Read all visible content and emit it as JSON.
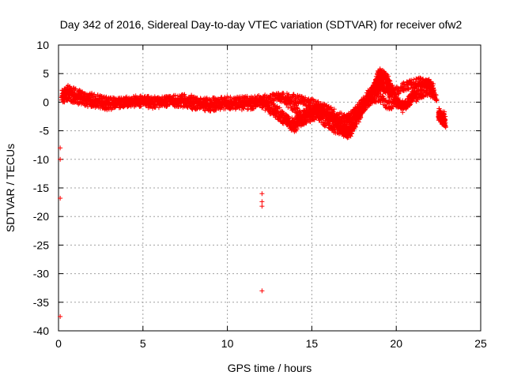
{
  "chart_data": {
    "type": "scatter",
    "title": "Day 342 of 2016, Sidereal Day-to-day VTEC variation (SDTVAR) for receiver ofw2",
    "xlabel": "GPS time / hours",
    "ylabel": "SDTVAR / TECUs",
    "xlim": [
      0,
      25
    ],
    "ylim": [
      -40,
      10
    ],
    "x_ticks": [
      "0",
      "5",
      "10",
      "15",
      "20",
      "25"
    ],
    "x_tick_values": [
      0,
      5,
      10,
      15,
      20,
      25
    ],
    "y_ticks": [
      "10",
      "5",
      "0",
      "-5",
      "-10",
      "-15",
      "-20",
      "-25",
      "-30",
      "-35",
      "-40"
    ],
    "y_tick_values": [
      10,
      5,
      0,
      -5,
      -10,
      -15,
      -20,
      -25,
      -30,
      -35,
      -40
    ],
    "grid": true,
    "marker": "+",
    "color": "#ff0000",
    "series": [
      {
        "name": "SDTVAR",
        "curves": [
          [
            [
              0.2,
              1.2
            ],
            [
              0.5,
              2.2
            ],
            [
              0.8,
              1.8
            ],
            [
              1.2,
              1.5
            ],
            [
              1.6,
              1.1
            ],
            [
              2.0,
              0.8
            ],
            [
              2.5,
              0.4
            ],
            [
              3.0,
              0.1
            ],
            [
              3.5,
              0.0
            ],
            [
              4.0,
              0.2
            ],
            [
              4.5,
              0.3
            ],
            [
              5.0,
              0.4
            ],
            [
              5.5,
              0.2
            ],
            [
              6.0,
              0.1
            ],
            [
              6.5,
              0.3
            ],
            [
              7.0,
              0.5
            ],
            [
              7.5,
              0.6
            ],
            [
              8.0,
              0.4
            ],
            [
              8.5,
              0.1
            ],
            [
              9.0,
              0.0
            ],
            [
              9.5,
              0.1
            ],
            [
              10.0,
              0.2
            ],
            [
              10.5,
              0.3
            ],
            [
              11.0,
              0.3
            ],
            [
              11.5,
              0.2
            ],
            [
              12.0,
              0.4
            ],
            [
              12.5,
              0.6
            ],
            [
              13.0,
              0.9
            ],
            [
              13.5,
              0.8
            ],
            [
              14.0,
              0.6
            ],
            [
              14.5,
              0.3
            ],
            [
              15.0,
              -0.2
            ],
            [
              15.5,
              -0.8
            ],
            [
              16.0,
              -1.5
            ],
            [
              16.5,
              -2.3
            ],
            [
              17.0,
              -3.0
            ],
            [
              17.3,
              -2.5
            ],
            [
              17.6,
              -1.5
            ],
            [
              18.0,
              0.0
            ],
            [
              18.4,
              1.5
            ],
            [
              18.8,
              3.0
            ],
            [
              19.0,
              3.5
            ],
            [
              19.3,
              2.5
            ],
            [
              19.6,
              1.5
            ],
            [
              20.0,
              2.0
            ],
            [
              20.5,
              2.8
            ],
            [
              21.0,
              3.2
            ],
            [
              21.5,
              3.6
            ],
            [
              22.0,
              3.0
            ],
            [
              22.3,
              1.0
            ]
          ],
          [
            [
              0.2,
              0.5
            ],
            [
              0.5,
              1.0
            ],
            [
              1.0,
              0.6
            ],
            [
              1.5,
              0.2
            ],
            [
              2.0,
              -0.2
            ],
            [
              2.5,
              -0.5
            ],
            [
              3.0,
              -0.6
            ],
            [
              3.5,
              -0.3
            ],
            [
              4.0,
              -0.2
            ],
            [
              4.5,
              0.0
            ],
            [
              5.0,
              -0.1
            ],
            [
              5.5,
              -0.3
            ],
            [
              6.0,
              -0.2
            ],
            [
              6.5,
              -0.1
            ],
            [
              7.0,
              0.0
            ],
            [
              7.5,
              -0.2
            ],
            [
              8.0,
              -0.5
            ],
            [
              8.5,
              -0.7
            ],
            [
              9.0,
              -0.8
            ],
            [
              9.5,
              -0.6
            ],
            [
              10.0,
              -0.4
            ],
            [
              10.5,
              -0.5
            ],
            [
              11.0,
              -0.6
            ],
            [
              11.5,
              -0.4
            ],
            [
              12.0,
              -0.2
            ],
            [
              12.5,
              -0.5
            ],
            [
              13.0,
              -1.5
            ],
            [
              13.5,
              -2.8
            ],
            [
              13.9,
              -4.8
            ],
            [
              14.3,
              -3.5
            ],
            [
              14.8,
              -2.0
            ],
            [
              15.3,
              -1.0
            ],
            [
              15.8,
              -1.5
            ],
            [
              16.3,
              -2.8
            ],
            [
              16.8,
              -4.8
            ],
            [
              17.1,
              -5.6
            ],
            [
              17.4,
              -4.5
            ],
            [
              17.8,
              -2.0
            ],
            [
              18.2,
              -0.5
            ],
            [
              18.6,
              0.5
            ],
            [
              19.0,
              1.0
            ],
            [
              19.5,
              -0.5
            ],
            [
              20.0,
              -0.2
            ],
            [
              20.5,
              -0.5
            ],
            [
              21.0,
              0.5
            ],
            [
              21.5,
              1.5
            ],
            [
              22.0,
              2.0
            ],
            [
              22.4,
              0.5
            ]
          ],
          [
            [
              12.2,
              -0.5
            ],
            [
              12.8,
              -2.0
            ],
            [
              13.3,
              -3.0
            ],
            [
              13.8,
              -3.5
            ],
            [
              14.3,
              -2.5
            ],
            [
              14.8,
              -1.5
            ],
            [
              15.3,
              -2.0
            ],
            [
              15.8,
              -3.5
            ],
            [
              16.3,
              -4.5
            ],
            [
              16.8,
              -5.0
            ],
            [
              17.2,
              -5.8
            ],
            [
              17.6,
              -3.5
            ],
            [
              18.0,
              -1.5
            ],
            [
              18.5,
              0.5
            ],
            [
              19.0,
              2.5
            ],
            [
              19.3,
              4.0
            ],
            [
              19.6,
              3.0
            ],
            [
              20.0,
              0.5
            ],
            [
              20.4,
              -1.0
            ],
            [
              20.8,
              0.5
            ],
            [
              21.3,
              2.5
            ],
            [
              21.8,
              3.5
            ],
            [
              22.2,
              2.5
            ]
          ],
          [
            [
              13.0,
              1.0
            ],
            [
              13.5,
              0.0
            ],
            [
              14.0,
              -1.0
            ],
            [
              14.5,
              -3.2
            ],
            [
              15.0,
              -2.5
            ],
            [
              15.5,
              -1.8
            ],
            [
              16.0,
              -2.5
            ],
            [
              16.5,
              -3.5
            ],
            [
              17.0,
              -4.5
            ],
            [
              17.5,
              -3.0
            ],
            [
              18.0,
              -0.8
            ],
            [
              18.5,
              1.5
            ],
            [
              18.9,
              4.5
            ],
            [
              19.1,
              5.2
            ],
            [
              19.4,
              4.5
            ],
            [
              19.8,
              2.0
            ]
          ],
          [
            [
              22.5,
              -1.8
            ],
            [
              22.7,
              -2.8
            ],
            [
              22.9,
              -3.8
            ],
            [
              22.7,
              -3.0
            ],
            [
              22.5,
              -2.2
            ],
            [
              22.9,
              -2.5
            ]
          ]
        ],
        "isolated_points": [
          [
            0.1,
            -8.0
          ],
          [
            0.1,
            -16.8
          ],
          [
            0.1,
            -37.5
          ],
          [
            12.05,
            -16.0
          ],
          [
            12.05,
            -17.4
          ],
          [
            12.05,
            -18.2
          ],
          [
            12.05,
            -33.0
          ],
          [
            0.1,
            -10.0
          ]
        ]
      }
    ]
  }
}
